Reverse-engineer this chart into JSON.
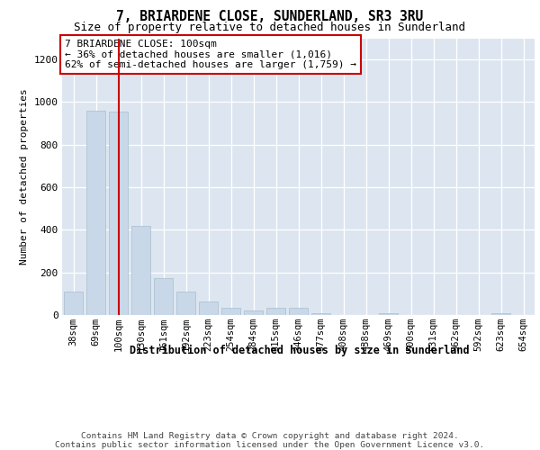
{
  "title": "7, BRIARDENE CLOSE, SUNDERLAND, SR3 3RU",
  "subtitle": "Size of property relative to detached houses in Sunderland",
  "xlabel": "Distribution of detached houses by size in Sunderland",
  "ylabel": "Number of detached properties",
  "categories": [
    "38sqm",
    "69sqm",
    "100sqm",
    "130sqm",
    "161sqm",
    "192sqm",
    "223sqm",
    "254sqm",
    "284sqm",
    "315sqm",
    "346sqm",
    "377sqm",
    "408sqm",
    "438sqm",
    "469sqm",
    "500sqm",
    "531sqm",
    "562sqm",
    "592sqm",
    "623sqm",
    "654sqm"
  ],
  "values": [
    110,
    960,
    955,
    420,
    175,
    110,
    65,
    35,
    20,
    35,
    35,
    8,
    2,
    2,
    8,
    2,
    2,
    2,
    2,
    8,
    2
  ],
  "bar_color": "#c8d8e8",
  "bar_edge_color": "#a8bece",
  "vline_color": "#cc0000",
  "vline_index": 2,
  "annotation_text": "7 BRIARDENE CLOSE: 100sqm\n← 36% of detached houses are smaller (1,016)\n62% of semi-detached houses are larger (1,759) →",
  "annotation_box_color": "#ffffff",
  "annotation_box_edge": "#cc0000",
  "ylim": [
    0,
    1300
  ],
  "yticks": [
    0,
    200,
    400,
    600,
    800,
    1000,
    1200
  ],
  "background_color": "#dde6f0",
  "footer": "Contains HM Land Registry data © Crown copyright and database right 2024.\nContains public sector information licensed under the Open Government Licence v3.0.",
  "title_fontsize": 10.5,
  "subtitle_fontsize": 9,
  "xlabel_fontsize": 8.5,
  "ylabel_fontsize": 8,
  "footer_fontsize": 6.8,
  "annotation_fontsize": 8,
  "tick_fontsize": 7.5,
  "ytick_fontsize": 8
}
